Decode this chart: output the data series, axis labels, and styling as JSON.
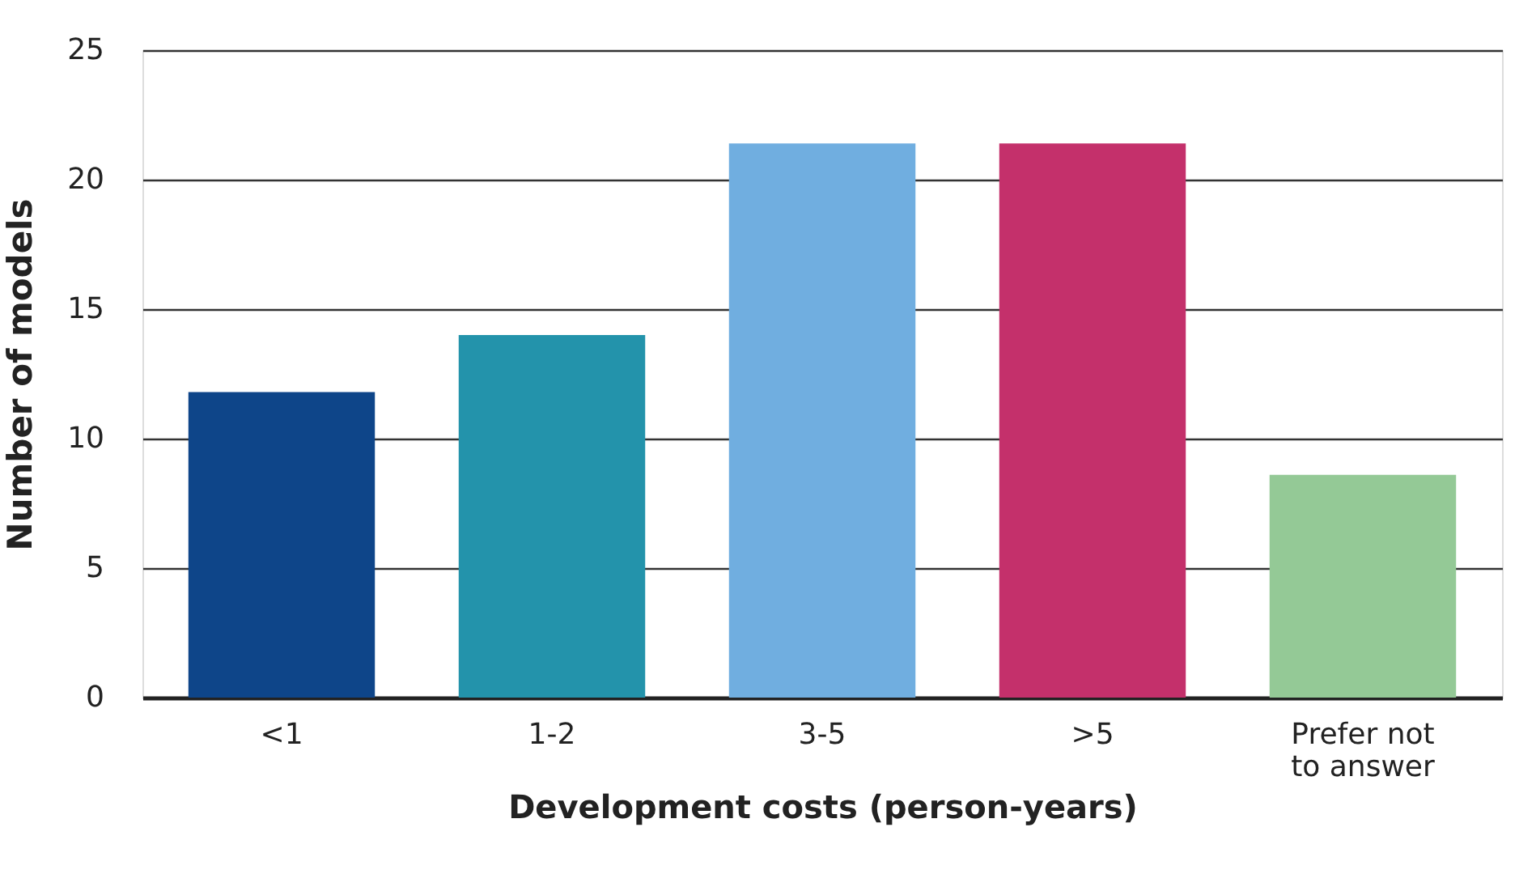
{
  "chart_data": {
    "type": "bar",
    "xlabel": "Development costs (person-years)",
    "ylabel": "Number of models",
    "categories": [
      "<1",
      "1-2",
      "3-5",
      ">5",
      "Prefer not to answer"
    ],
    "values": [
      11.8,
      14.0,
      21.4,
      21.4,
      8.6
    ],
    "colors": [
      "#0e4589",
      "#2393ab",
      "#70aee0",
      "#c4306b",
      "#94c996"
    ],
    "ylim": [
      0,
      25
    ],
    "yticks": [
      0,
      5,
      10,
      15,
      20,
      25
    ],
    "grid": "y"
  }
}
